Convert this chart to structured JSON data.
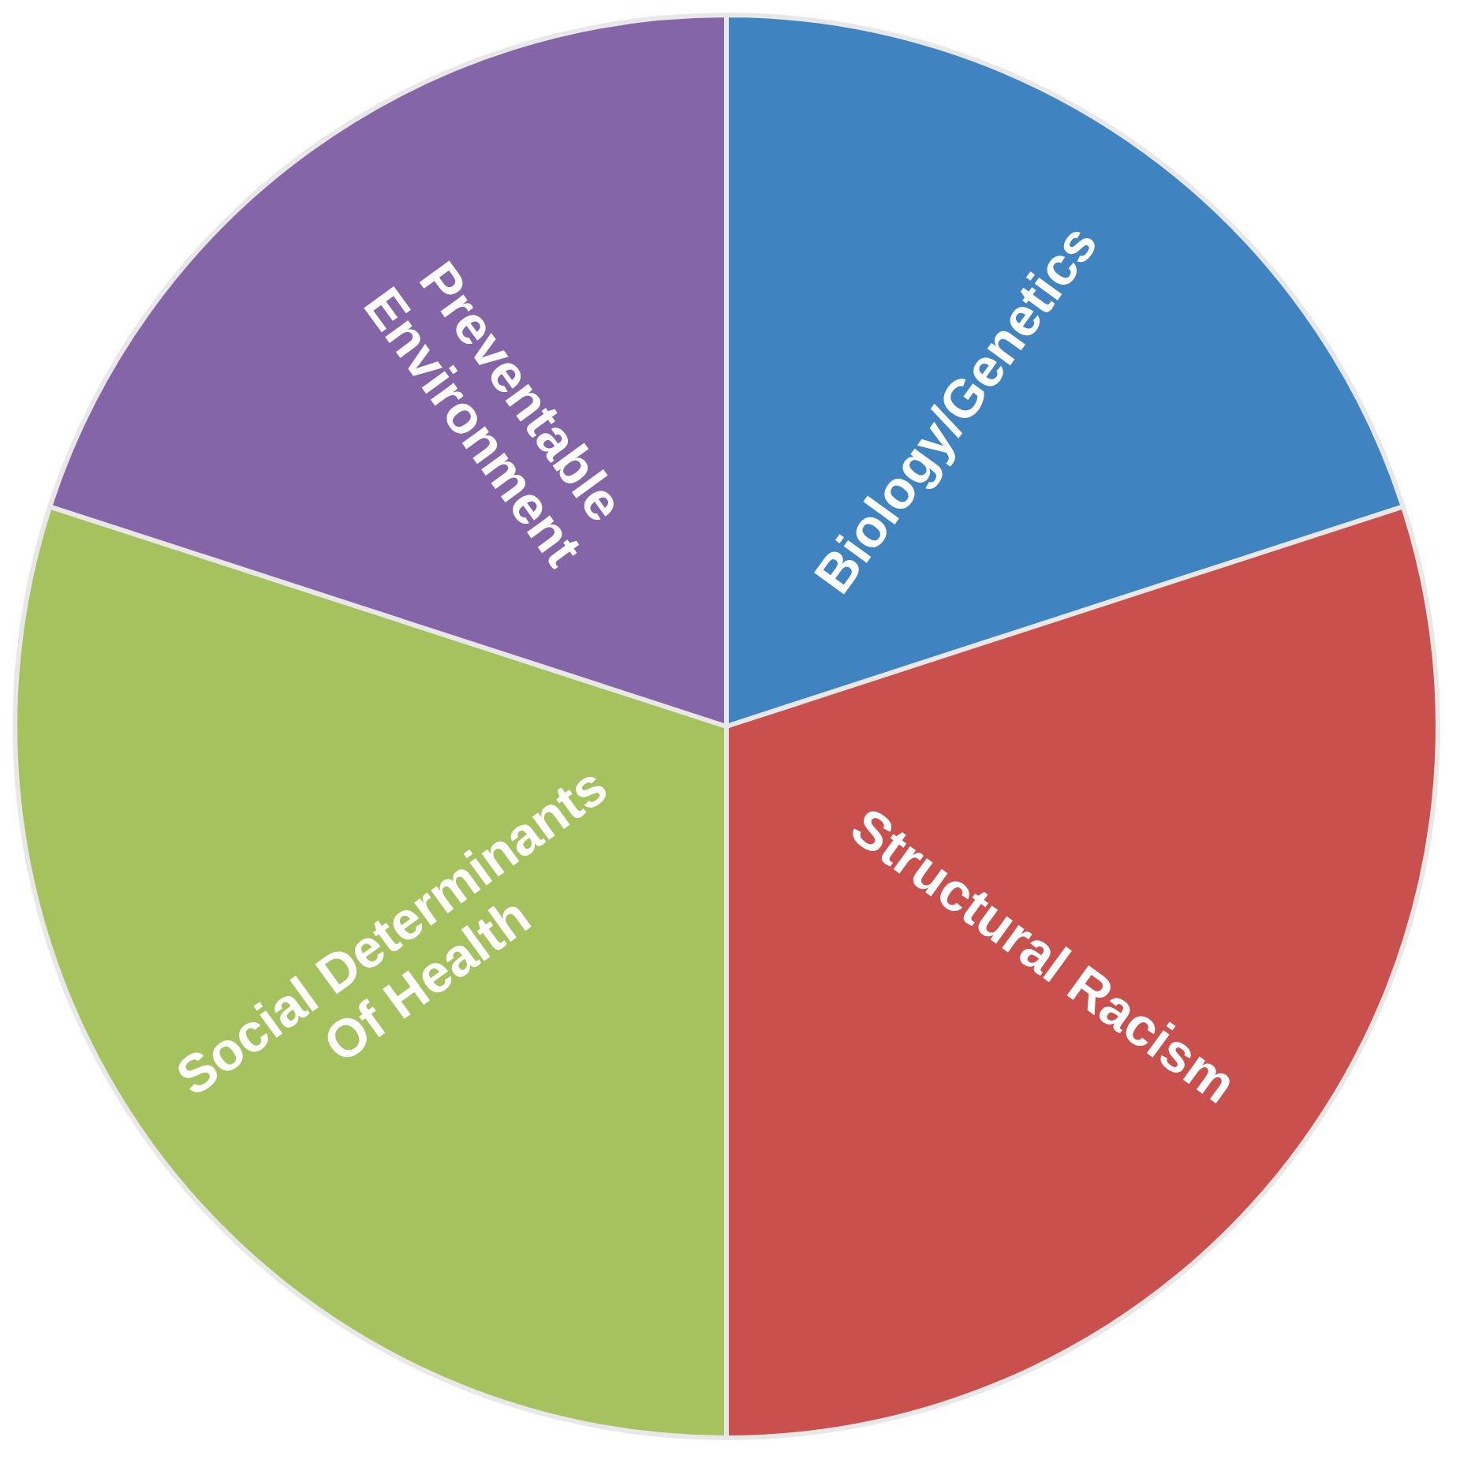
{
  "chart_data": {
    "type": "pie",
    "categories": [
      "Biology/Genetics",
      "Structural Racism",
      "Social Determinants Of Health",
      "Preventable Environment"
    ],
    "values": [
      20,
      30,
      30,
      20
    ],
    "colors": [
      "#3f83c0",
      "#c9504d",
      "#a5c25f",
      "#8466a8"
    ],
    "legend": false
  }
}
